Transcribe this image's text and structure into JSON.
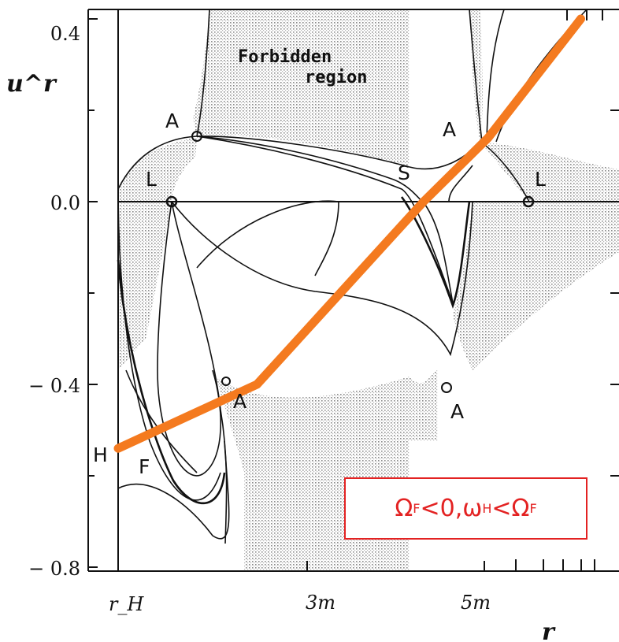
{
  "chart_data": {
    "type": "line",
    "title": "",
    "xlabel": "r",
    "ylabel": "u^r",
    "ylim": [
      -0.8,
      0.4
    ],
    "x_tick_labels": [
      "r_H",
      "3m",
      "5m"
    ],
    "y_tick_labels": [
      "0.4",
      "0.0",
      "− 0.4",
      "− 0.8"
    ],
    "y_ticks": [
      0.4,
      0.0,
      -0.4,
      -0.8
    ],
    "region_label_line1": "Forbidden",
    "region_label_line2": "region",
    "point_labels": {
      "A_top_left": "A",
      "A_top_right": "A",
      "L_left": "L",
      "L_right": "L",
      "S": "S",
      "A_bottom_left": "A",
      "A_bottom_right": "A",
      "H": "H",
      "F": "F"
    },
    "highlight_line": {
      "color": "#f47a1f",
      "points": [
        [
          1.0,
          -0.54
        ],
        [
          2.5,
          -0.4
        ],
        [
          4.3,
          0.0
        ],
        [
          5.0,
          0.14
        ],
        [
          6.0,
          0.4
        ]
      ]
    },
    "annotation": {
      "omega_F": "Ω",
      "sub_F1": "F",
      "rel1": "<0,",
      "omega_H": "ω",
      "sub_H": "H",
      "rel2": "<",
      "omega_F2": "Ω",
      "sub_F2": "F",
      "color": "#e32222"
    }
  }
}
